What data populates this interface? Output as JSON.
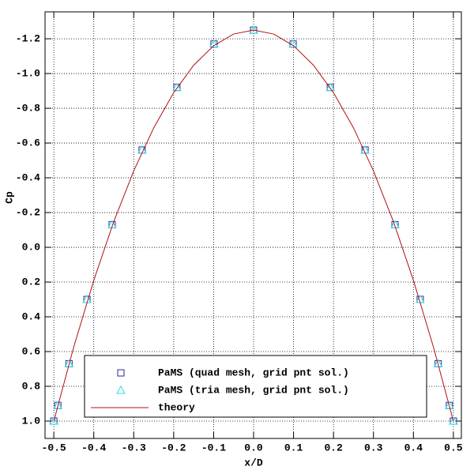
{
  "chart_data": {
    "type": "scatter",
    "xlabel": "x/D",
    "ylabel": "Cp",
    "xlim": [
      -0.522,
      0.52
    ],
    "ylim": [
      1.1,
      -1.355
    ],
    "xticks": [
      -0.5,
      -0.4,
      -0.3,
      -0.2,
      -0.1,
      {
        "value": 0,
        "label": "0.0"
      },
      0.1,
      0.2,
      0.3,
      0.4,
      0.5
    ],
    "yticks": [
      -1.2,
      {
        "value": -1,
        "label": "-1.0"
      },
      -0.8,
      -0.6,
      -0.4,
      -0.2,
      {
        "value": 0,
        "label": "0.0"
      },
      0.2,
      0.4,
      0.6,
      0.8,
      {
        "value": 1,
        "label": "1.0"
      }
    ],
    "grid": true,
    "series": [
      {
        "name": "PaMS (quad mesh, grid pnt sol.)",
        "color": "#2a2aa0",
        "marker": "square",
        "x": [
          -0.5,
          -0.49,
          -0.462,
          -0.417,
          -0.354,
          -0.279,
          -0.192,
          -0.099,
          0,
          0.099,
          0.192,
          0.279,
          0.354,
          0.417,
          0.462,
          0.49,
          0.5
        ],
        "values": [
          1.0,
          0.91,
          0.67,
          0.3,
          -0.13,
          -0.56,
          -0.92,
          -1.17,
          -1.25,
          -1.17,
          -0.92,
          -0.56,
          -0.13,
          0.3,
          0.67,
          0.91,
          1.0
        ]
      },
      {
        "name": "PaMS (tria mesh, grid pnt sol.)",
        "color": "#30d8e0",
        "marker": "triangle",
        "x": [
          -0.5,
          -0.49,
          -0.462,
          -0.417,
          -0.354,
          -0.279,
          -0.192,
          -0.099,
          0,
          0.099,
          0.192,
          0.279,
          0.354,
          0.417,
          0.462,
          0.49,
          0.5
        ],
        "values": [
          1.0,
          0.91,
          0.67,
          0.3,
          -0.13,
          -0.56,
          -0.92,
          -1.17,
          -1.25,
          -1.17,
          -0.92,
          -0.56,
          -0.13,
          0.3,
          0.67,
          0.91,
          1.0
        ]
      },
      {
        "name": "theory",
        "color": "#b01010",
        "marker": "line",
        "x": [
          -0.5,
          -0.45,
          -0.4,
          -0.35,
          -0.3,
          -0.25,
          -0.2,
          -0.15,
          -0.1,
          -0.05,
          0,
          0.05,
          0.1,
          0.15,
          0.2,
          0.25,
          0.3,
          0.35,
          0.4,
          0.45,
          0.5
        ],
        "values": [
          1.0,
          0.5725,
          0.19,
          -0.1475,
          -0.44,
          -0.6875,
          -0.89,
          -1.0475,
          -1.16,
          -1.2275,
          -1.25,
          -1.2275,
          -1.16,
          -1.0475,
          -0.89,
          -0.6875,
          -0.44,
          -0.1475,
          0.19,
          0.5725,
          1.0
        ]
      }
    ]
  }
}
